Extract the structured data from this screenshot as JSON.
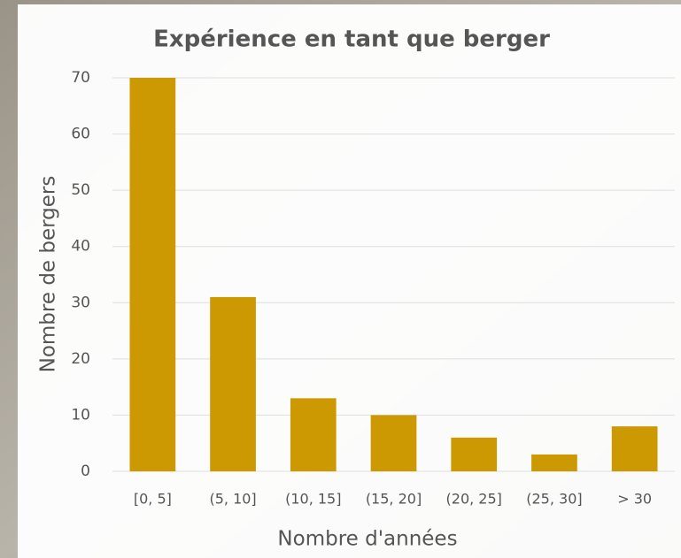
{
  "chart_data": {
    "type": "bar",
    "title": "Expérience en tant que berger",
    "x_label": "Nombre d'années",
    "y_label": "Nombre de bergers",
    "categories": [
      "[0, 5]",
      "(5, 10]",
      "(10, 15]",
      "(15, 20]",
      "(20, 25]",
      "(25, 30]",
      "> 30"
    ],
    "values": [
      70,
      31,
      13,
      10,
      6,
      3,
      8
    ],
    "color": "#cc9903",
    "ylim": [
      0,
      70
    ],
    "yticks": [
      0,
      10,
      20,
      30,
      40,
      50,
      60,
      70
    ],
    "grid": true
  }
}
